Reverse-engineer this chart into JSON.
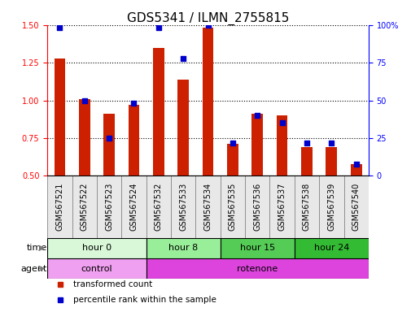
{
  "title": "GDS5341 / ILMN_2755815",
  "samples": [
    "GSM567521",
    "GSM567522",
    "GSM567523",
    "GSM567524",
    "GSM567532",
    "GSM567533",
    "GSM567534",
    "GSM567535",
    "GSM567536",
    "GSM567537",
    "GSM567538",
    "GSM567539",
    "GSM567540"
  ],
  "transformed_count": [
    1.28,
    1.01,
    0.91,
    0.97,
    1.35,
    1.14,
    1.48,
    0.71,
    0.91,
    0.9,
    0.69,
    0.69,
    0.58
  ],
  "percentile_rank": [
    98,
    50,
    25,
    48,
    98,
    78,
    100,
    22,
    40,
    35,
    22,
    22,
    8
  ],
  "ylim_left": [
    0.5,
    1.5
  ],
  "ylim_right": [
    0,
    100
  ],
  "yticks_left": [
    0.5,
    0.75,
    1.0,
    1.25,
    1.5
  ],
  "yticks_right": [
    0,
    25,
    50,
    75,
    100
  ],
  "bar_color": "#cc2000",
  "dot_color": "#0000cc",
  "time_groups": [
    {
      "label": "hour 0",
      "start": 0,
      "end": 4,
      "color": "#d8f8d8"
    },
    {
      "label": "hour 8",
      "start": 4,
      "end": 7,
      "color": "#99ee99"
    },
    {
      "label": "hour 15",
      "start": 7,
      "end": 10,
      "color": "#55cc55"
    },
    {
      "label": "hour 24",
      "start": 10,
      "end": 13,
      "color": "#33bb33"
    }
  ],
  "agent_groups": [
    {
      "label": "control",
      "start": 0,
      "end": 4,
      "color": "#f0a0f0"
    },
    {
      "label": "rotenone",
      "start": 4,
      "end": 13,
      "color": "#dd44dd"
    }
  ],
  "legend_items": [
    {
      "label": "transformed count",
      "color": "#cc2000"
    },
    {
      "label": "percentile rank within the sample",
      "color": "#0000cc"
    }
  ],
  "title_fontsize": 11,
  "tick_fontsize": 7,
  "annot_fontsize": 8,
  "label_fontsize": 8
}
